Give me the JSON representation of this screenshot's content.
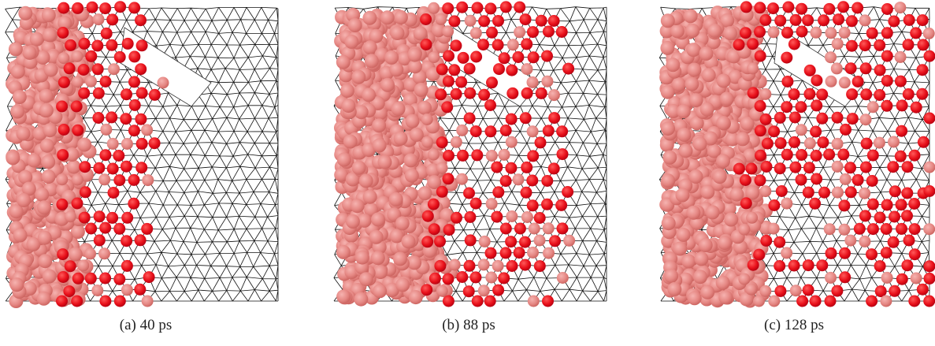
{
  "figure": {
    "panels": [
      {
        "caption": "(a) 40 ps"
      },
      {
        "caption": "(b) 88 ps"
      },
      {
        "caption": "(c) 128 ps"
      }
    ]
  }
}
